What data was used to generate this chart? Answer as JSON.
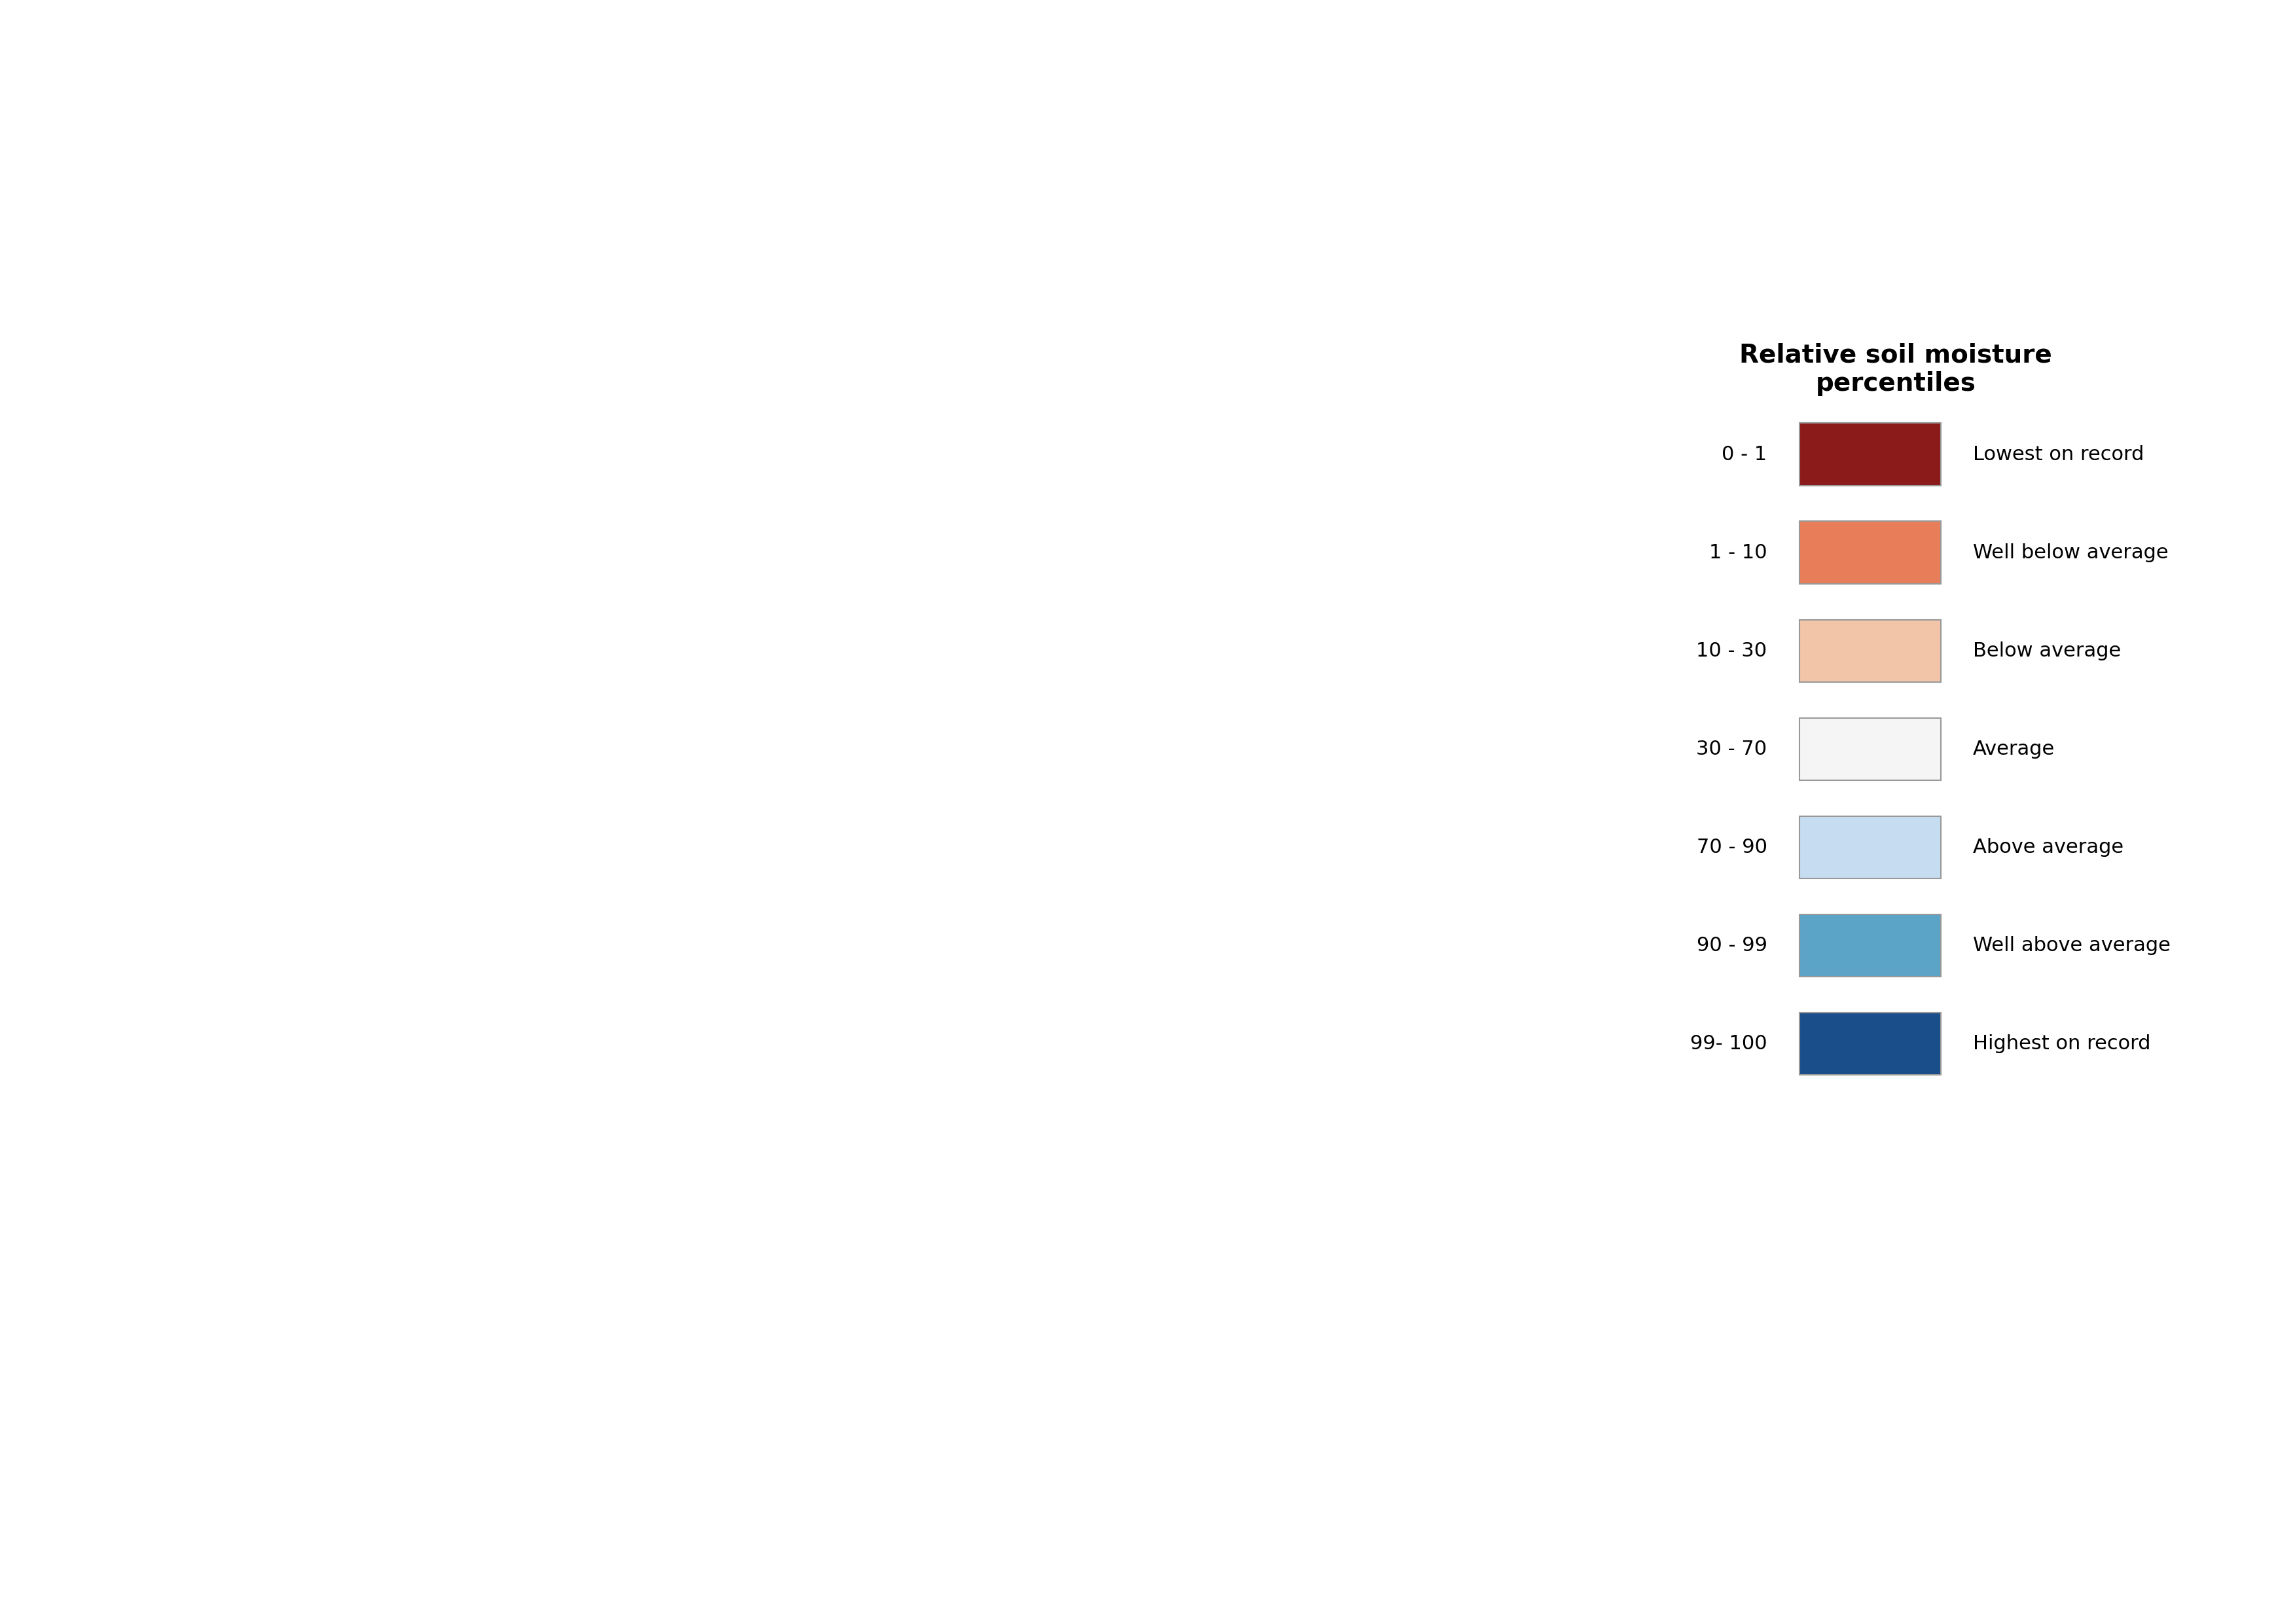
{
  "title": "Relative soil moisture\npercentiles",
  "legend_categories": [
    "0 - 1",
    "1 - 10",
    "10 - 30",
    "30 - 70",
    "70 - 90",
    "90 - 99",
    "99- 100"
  ],
  "legend_labels": [
    "Lowest on record",
    "Well below average",
    "Below average",
    "Average",
    "Above average",
    "Well above average",
    "Highest on record"
  ],
  "legend_colors": [
    "#8B1A1A",
    "#E87D5A",
    "#F2C4A8",
    "#F5F5F5",
    "#C6DCF0",
    "#5BA4C8",
    "#1A4E8A"
  ],
  "legend_edge_colors": [
    "#888888",
    "#888888",
    "#888888",
    "#888888",
    "#888888",
    "#888888",
    "#888888"
  ],
  "background_color": "#FFFFFF",
  "map_land_color": "#F0F0F0",
  "map_border_color": "#333333",
  "title_fontsize": 28,
  "legend_fontsize": 22,
  "legend_title_fontsize": 28
}
